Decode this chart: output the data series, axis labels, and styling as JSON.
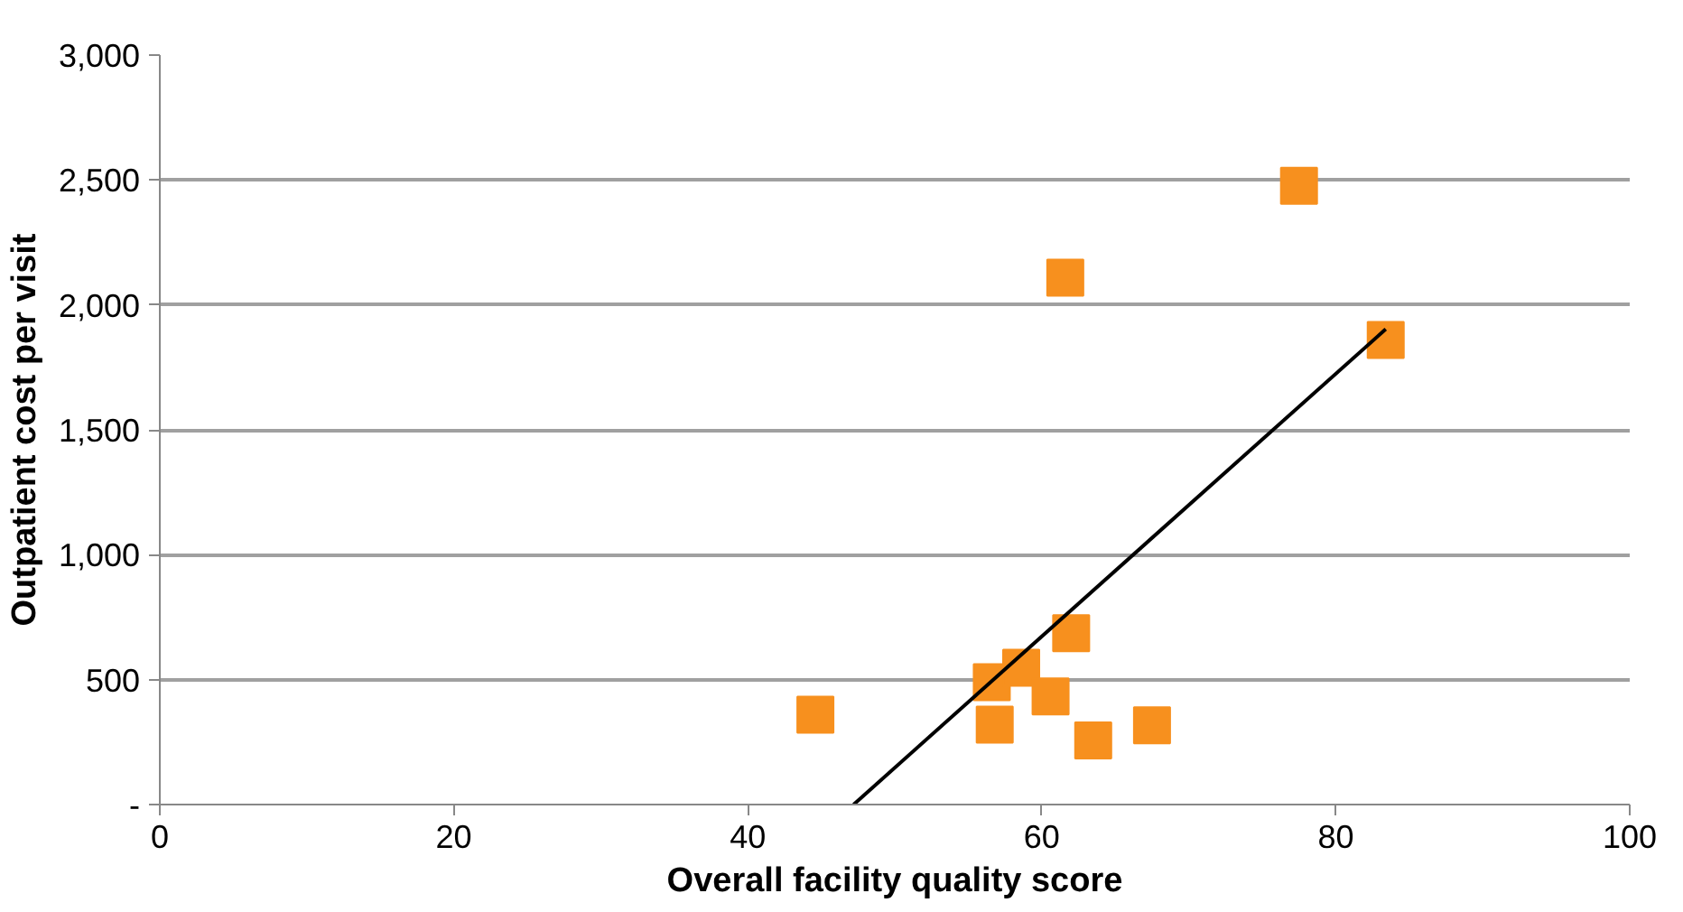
{
  "chart_data": {
    "type": "scatter",
    "xlabel": "Overall facility quality score",
    "ylabel": "Outpatient cost per visit",
    "xlim": [
      0,
      100
    ],
    "xticks": [
      0,
      20,
      40,
      60,
      80,
      100
    ],
    "ylim": [
      0,
      3000
    ],
    "yticks": [
      {
        "value": 0,
        "label": "-"
      },
      {
        "value": 500,
        "label": "500"
      },
      {
        "value": 1000,
        "label": "1,000"
      },
      {
        "value": 1500,
        "label": "1,500"
      },
      {
        "value": 2000,
        "label": "2,000"
      },
      {
        "value": 2500,
        "label": "2,500"
      },
      {
        "value": 3000,
        "label": "3,000"
      }
    ],
    "grid": "y",
    "marker": "square",
    "series": [
      {
        "color": "#f7901e",
        "x": [
          44.6,
          56.6,
          56.8,
          58.6,
          60.6,
          63.5,
          67.5,
          62.0,
          61.6,
          77.5,
          83.4
        ],
        "values": [
          360,
          490,
          320,
          548,
          433,
          257,
          317,
          686,
          2109,
          2477,
          1860
        ]
      },
      {
        "type": "line",
        "marker": "none",
        "color": "#000000",
        "x": [
          47.2,
          83.4
        ],
        "values": [
          0,
          1903
        ]
      }
    ]
  }
}
